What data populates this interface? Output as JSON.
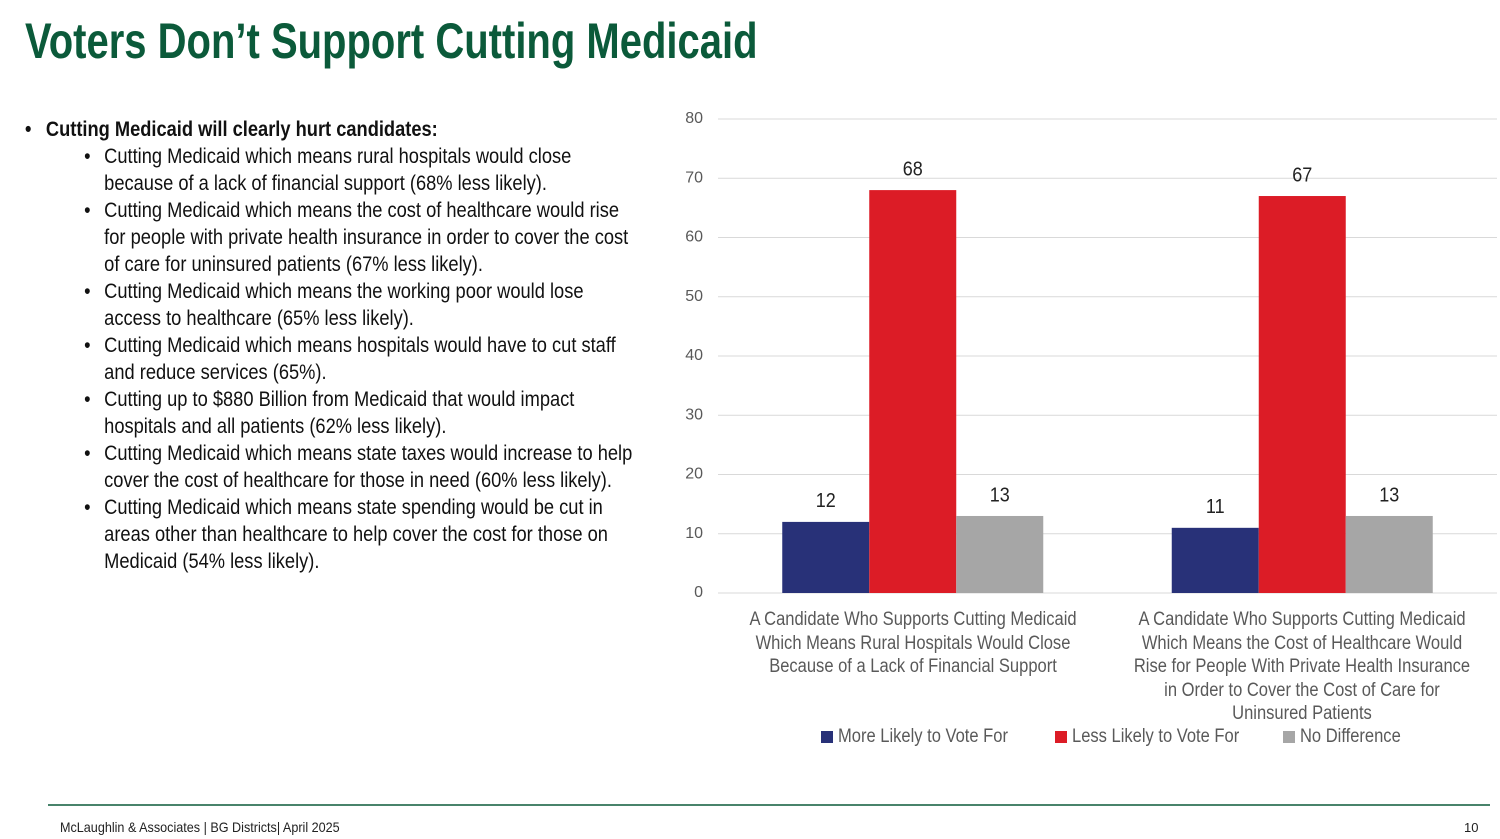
{
  "title": "Voters Don’t Support Cutting Medicaid",
  "bullets": {
    "heading": "Cutting Medicaid will clearly hurt candidates:",
    "items": [
      "Cutting Medicaid which means rural hospitals would close because of a lack of financial support (68% less likely).",
      "Cutting Medicaid which means the cost of healthcare would rise for people with private health insurance in order to cover the cost of care for uninsured patients (67% less likely).",
      "Cutting Medicaid which means the working poor would lose access to healthcare (65% less likely).",
      "Cutting Medicaid which means hospitals would have to cut staff and reduce services (65%).",
      "Cutting up to $880 Billion from Medicaid that would impact hospitals and all patients (62% less likely).",
      "Cutting Medicaid which means state taxes would increase to help cover the cost of healthcare for those in need (60% less likely).",
      "Cutting Medicaid which means state spending would be cut in areas other than healthcare to help cover the cost for those on Medicaid (54% less likely)."
    ]
  },
  "chart_data": {
    "type": "bar",
    "categories": [
      "A Candidate Who Supports Cutting Medicaid Which Means Rural Hospitals Would Close Because of a Lack of Financial Support",
      "A Candidate Who Supports Cutting Medicaid Which Means the Cost of Healthcare Would Rise for People With Private Health Insurance in Order to Cover the Cost of Care for Uninsured Patients"
    ],
    "series": [
      {
        "name": "More Likely to Vote For",
        "color": "#283178",
        "values": [
          12,
          11
        ]
      },
      {
        "name": "Less Likely to Vote For",
        "color": "#dc1c26",
        "values": [
          68,
          67
        ]
      },
      {
        "name": "No Difference",
        "color": "#a6a6a6",
        "values": [
          13,
          13
        ]
      }
    ],
    "ylim": [
      0,
      80
    ],
    "yticks": [
      0,
      10,
      20,
      30,
      40,
      50,
      60,
      70,
      80
    ],
    "grid": true,
    "legend": "bottom"
  },
  "footer": {
    "source": "McLaughlin & Associates | BG Districts| April 2025",
    "page": 10
  }
}
